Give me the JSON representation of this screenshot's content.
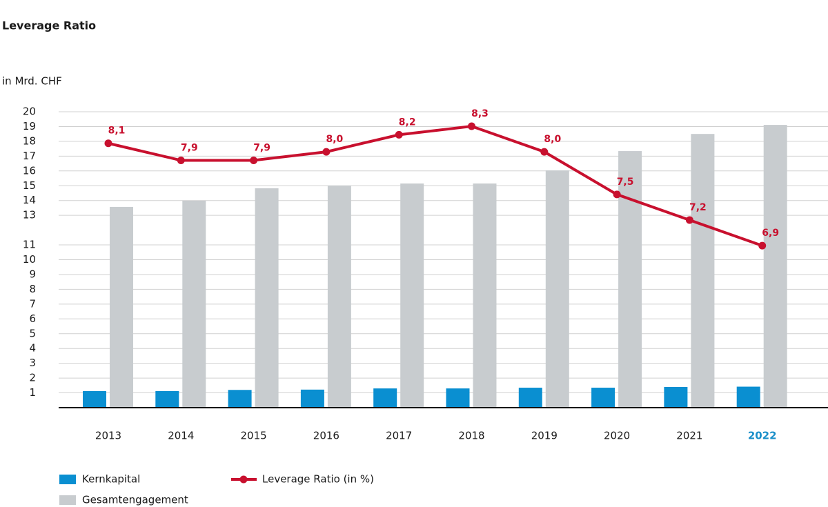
{
  "chart_data": {
    "type": "bar-line",
    "title": "Leverage Ratio",
    "y_label": "in Mrd. CHF",
    "categories": [
      "2013",
      "2014",
      "2015",
      "2016",
      "2017",
      "2018",
      "2019",
      "2020",
      "2021",
      "2022"
    ],
    "series": [
      {
        "name": "Kernkapital",
        "type": "bar",
        "color": "#0a8fd1",
        "values": [
          1.12,
          1.12,
          1.2,
          1.22,
          1.3,
          1.3,
          1.35,
          1.35,
          1.4,
          1.42
        ]
      },
      {
        "name": "Gesamtengagement",
        "type": "bar",
        "color": "#c8cccf",
        "values": [
          13.57,
          13.99,
          14.83,
          15.01,
          15.15,
          15.15,
          16.04,
          17.34,
          18.5,
          19.11
        ]
      },
      {
        "name": "Leverage Ratio (in %)",
        "type": "line",
        "axis": "y2",
        "color": "#c8102e",
        "values": [
          8.1,
          7.9,
          7.9,
          8.0,
          8.2,
          8.3,
          8.0,
          7.5,
          7.2,
          6.9
        ],
        "value_labels": [
          "8,1",
          "7,9",
          "7,9",
          "8,0",
          "8,2",
          "8,3",
          "8,0",
          "7,5",
          "7,2",
          "6,9"
        ]
      }
    ],
    "ylim": [
      0,
      20
    ],
    "yticks": [
      1,
      2,
      3,
      4,
      5,
      6,
      7,
      8,
      9,
      10,
      11,
      13,
      14,
      15,
      16,
      17,
      18,
      19,
      20
    ],
    "y2lim": [
      5.0,
      8.47
    ],
    "grid": true,
    "highlight_color": "#1a8fc9"
  }
}
